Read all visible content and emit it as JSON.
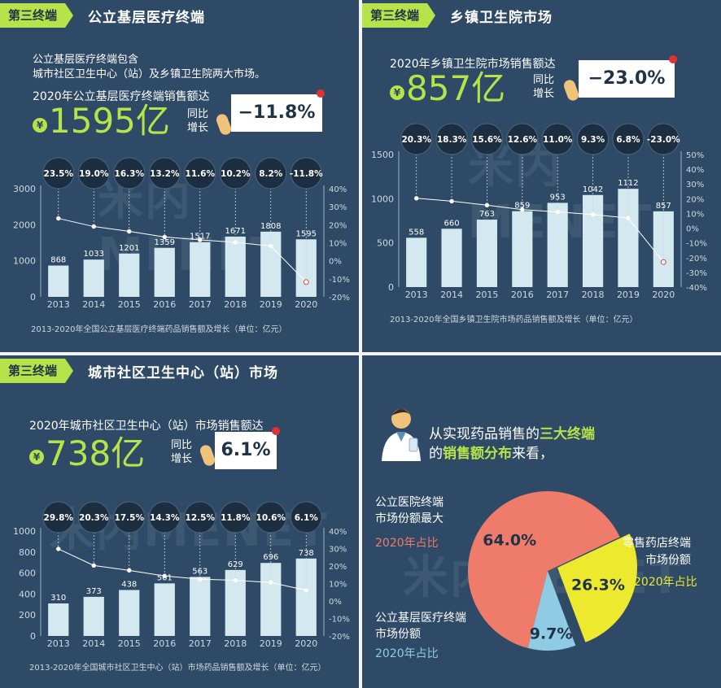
{
  "panel1": {
    "tag": "第三终端",
    "title": "公立基层医疗终端",
    "intro_line1": "公立基层医疗终端包含",
    "intro_line2": "城市社区卫生中心（站）及乡镇卫生院两大市场。",
    "headline": "2020年公立基层医疗终端销售额达",
    "yen": "¥",
    "value": "1595亿",
    "yoy_label1": "同比",
    "yoy_label2": "增长",
    "yoy_value": "−11.8%",
    "caption": "2013-2020年全国公立基层医疗终端药品销售额及增长（单位：亿元）"
  },
  "panel2": {
    "tag": "第三终端",
    "title": "乡镇卫生院市场",
    "headline": "2020年乡镇卫生院市场销售额达",
    "yen": "¥",
    "value": "857亿",
    "yoy_label1": "同比",
    "yoy_label2": "增长",
    "yoy_value": "−23.0%",
    "caption": "2013-2020年全国乡镇卫生院市场药品销售额及增长（单位：亿元）"
  },
  "panel3": {
    "tag": "第三终端",
    "title": "城市社区卫生中心（站）市场",
    "headline": "2020年城市社区卫生中心（站）市场销售额达",
    "yen": "¥",
    "value": "738亿",
    "yoy_label1": "同比",
    "yoy_label2": "增长",
    "yoy_value": "6.1%",
    "caption": "2013-2020年全国城市社区卫生中心（站）市场药品销售额及增长（单位：亿元）"
  },
  "panel4": {
    "intro_line1_a": "从实现药品销售的",
    "intro_line1_b": "三大终端",
    "intro_line2_a": "的",
    "intro_line2_b": "销售额分布",
    "intro_line2_c": "来看，",
    "label_hospital_1": "公立医院终端",
    "label_hospital_2": "市场份额最大",
    "label_hospital_3": "2020年占比",
    "label_retail_1": "零售药店终端",
    "label_retail_2": "市场份额",
    "label_retail_3": "2020年占比",
    "label_primary_1": "公立基层医疗终端",
    "label_primary_2": "市场份额",
    "label_primary_3": "2020年占比"
  },
  "watermark": "米内MENET",
  "colors": {
    "bg": "#2e4a66",
    "accent": "#b6e34a",
    "bar": "#d4e8f0",
    "hospital": "#ef7b6b",
    "retail": "#ece92f",
    "primary": "#8fcbe3"
  },
  "chart_data": [
    {
      "type": "bar",
      "title": "2013-2020年全国公立基层医疗终端药品销售额及增长（单位：亿元）",
      "categories": [
        "2013",
        "2014",
        "2015",
        "2016",
        "2017",
        "2018",
        "2019",
        "2020"
      ],
      "values": [
        868,
        1033,
        1201,
        1359,
        1517,
        1671,
        1808,
        1595
      ],
      "value_labels": [
        "868",
        "1033",
        "1201",
        "1359",
        "1517",
        "1671",
        "1808",
        "1595"
      ],
      "growth": [
        23.5,
        19.0,
        16.3,
        13.2,
        11.6,
        10.2,
        8.2,
        -11.8
      ],
      "growth_labels": [
        "23.5%",
        "19.0%",
        "16.3%",
        "13.2%",
        "11.6%",
        "10.2%",
        "8.2%",
        "-11.8%"
      ],
      "left_ticks": [
        "0",
        "1000",
        "2000",
        "3000"
      ],
      "right_ticks": [
        "-20%",
        "-10%",
        "0%",
        "10%",
        "20%",
        "30%",
        "40%"
      ],
      "ylim": [
        0,
        3000
      ],
      "y2lim": [
        -20,
        40
      ]
    },
    {
      "type": "bar",
      "title": "2013-2020年全国乡镇卫生院市场药品销售额及增长（单位：亿元）",
      "categories": [
        "2013",
        "2014",
        "2015",
        "2016",
        "2017",
        "2018",
        "2019",
        "2020"
      ],
      "values": [
        558,
        660,
        763,
        859,
        953,
        1042,
        1112,
        857
      ],
      "value_labels": [
        "558",
        "660",
        "763",
        "859",
        "953",
        "1042",
        "1112",
        "857"
      ],
      "growth": [
        20.3,
        18.3,
        15.6,
        12.6,
        11.0,
        9.3,
        6.8,
        -23.0
      ],
      "growth_labels": [
        "20.3%",
        "18.3%",
        "15.6%",
        "12.6%",
        "11.0%",
        "9.3%",
        "6.8%",
        "-23.0%"
      ],
      "left_ticks": [
        "0",
        "500",
        "1000",
        "1500"
      ],
      "right_ticks": [
        "-40%",
        "-30%",
        "-20%",
        "-10%",
        "0%",
        "10%",
        "20%",
        "30%",
        "40%",
        "50%"
      ],
      "ylim": [
        0,
        1500
      ],
      "y2lim": [
        -40,
        50
      ]
    },
    {
      "type": "bar",
      "title": "2013-2020年全国城市社区卫生中心（站）市场药品销售额及增长（单位：亿元）",
      "categories": [
        "2013",
        "2014",
        "2015",
        "2016",
        "2017",
        "2018",
        "2019",
        "2020"
      ],
      "values": [
        310,
        373,
        438,
        501,
        563,
        629,
        696,
        738
      ],
      "value_labels": [
        "310",
        "373",
        "438",
        "501",
        "563",
        "629",
        "696",
        "738"
      ],
      "growth": [
        29.8,
        20.3,
        17.5,
        14.3,
        12.5,
        11.8,
        10.6,
        6.1
      ],
      "growth_labels": [
        "29.8%",
        "20.3%",
        "17.5%",
        "14.3%",
        "12.5%",
        "11.8%",
        "10.6%",
        "6.1%"
      ],
      "left_ticks": [
        "0",
        "200",
        "400",
        "600",
        "800",
        "1000"
      ],
      "right_ticks": [
        "-20%",
        "-10%",
        "0%",
        "10%",
        "20%",
        "30%",
        "40%"
      ],
      "ylim": [
        0,
        1000
      ],
      "y2lim": [
        -20,
        40
      ]
    },
    {
      "type": "pie",
      "title": "2020年三大终端销售额分布",
      "categories": [
        "公立医院终端",
        "零售药店终端",
        "公立基层医疗终端"
      ],
      "values": [
        64.0,
        26.3,
        9.7
      ],
      "value_labels": [
        "64.0%",
        "26.3%",
        "9.7%"
      ]
    }
  ]
}
